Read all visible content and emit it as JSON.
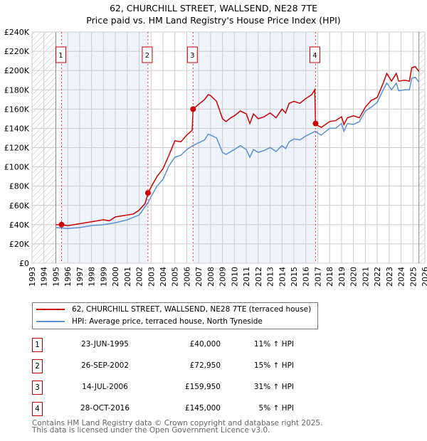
{
  "chart_data": {
    "type": "line",
    "title": "62, CHURCHILL STREET, WALLSEND, NE28 7TE",
    "subtitle": "Price paid vs. HM Land Registry's House Price Index (HPI)",
    "xlim": [
      1993,
      2026
    ],
    "ylim": [
      0,
      240000
    ],
    "x_ticks": [
      "1993",
      "1994",
      "1995",
      "1996",
      "1997",
      "1998",
      "1999",
      "2000",
      "2001",
      "2002",
      "2003",
      "2004",
      "2005",
      "2006",
      "2007",
      "2008",
      "2009",
      "2010",
      "2011",
      "2012",
      "2013",
      "2014",
      "2015",
      "2016",
      "2017",
      "2018",
      "2019",
      "2020",
      "2021",
      "2022",
      "2023",
      "2024",
      "2025",
      "2026"
    ],
    "y_ticks": [
      "£0",
      "£20K",
      "£40K",
      "£60K",
      "£80K",
      "£100K",
      "£120K",
      "£140K",
      "£160K",
      "£180K",
      "£200K",
      "£220K",
      "£240K"
    ],
    "grid": true,
    "data_range": [
      1995.0,
      2025.5
    ],
    "series": [
      {
        "name": "62, CHURCHILL STREET, WALLSEND, NE28 7TE (terraced house)",
        "color": "#cc0000",
        "x": [
          1995,
          1995.5,
          1996,
          1997,
          1998,
          1999,
          1999.5,
          2000,
          2001,
          2001.5,
          2002,
          2002.5,
          2002.75,
          2003,
          2003.5,
          2004,
          2004.5,
          2005,
          2005.5,
          2006,
          2006.45,
          2006.53,
          2007,
          2007.5,
          2007.8,
          2008,
          2008.5,
          2009,
          2009.3,
          2009.7,
          2010,
          2010.5,
          2011,
          2011.3,
          2011.6,
          2012,
          2012.5,
          2013,
          2013.5,
          2014,
          2014.3,
          2014.6,
          2015,
          2015.5,
          2016,
          2016.5,
          2016.75,
          2016.82,
          2017,
          2017.3,
          2018,
          2018.5,
          2019,
          2019.2,
          2019.5,
          2020,
          2020.5,
          2021,
          2021.5,
          2022,
          2022.5,
          2022.8,
          2023.2,
          2023.6,
          2023.8,
          2024.3,
          2024.7,
          2024.9,
          2025.2,
          2025.5
        ],
        "y": [
          40,
          40,
          39,
          41,
          43,
          45,
          44,
          48,
          50,
          51,
          55,
          62,
          73,
          79,
          90,
          98,
          112,
          127,
          126,
          133,
          138,
          160,
          165,
          170,
          175,
          174,
          168,
          150,
          147,
          151,
          153,
          158,
          155,
          145,
          155,
          150,
          152,
          156,
          151,
          160,
          156,
          166,
          168,
          166,
          171,
          175,
          180,
          145,
          143,
          141,
          147,
          148,
          152,
          144,
          151,
          153,
          151,
          162,
          169,
          172,
          187,
          197,
          189,
          197,
          189,
          190,
          189,
          203,
          204,
          199
        ]
      },
      {
        "name": "HPI: Average price, terraced house, North Tyneside",
        "color": "#5b8fd4",
        "x": [
          1995,
          1996,
          1997,
          1998,
          1999,
          2000,
          2001,
          2002,
          2002.75,
          2003,
          2003.5,
          2004,
          2004.5,
          2005,
          2005.5,
          2006,
          2006.5,
          2007,
          2007.5,
          2007.8,
          2008,
          2008.5,
          2009,
          2009.3,
          2010,
          2010.5,
          2011,
          2011.3,
          2011.6,
          2012,
          2012.5,
          2013,
          2013.5,
          2014,
          2014.3,
          2014.6,
          2015,
          2015.5,
          2016,
          2016.8,
          2017,
          2017.3,
          2018,
          2018.5,
          2019,
          2019.2,
          2019.5,
          2020,
          2020.5,
          2021,
          2021.5,
          2022,
          2022.5,
          2022.8,
          2023.2,
          2023.6,
          2023.8,
          2024.3,
          2024.7,
          2024.9,
          2025.2,
          2025.5
        ],
        "y": [
          37,
          36,
          37,
          39,
          40,
          42,
          45,
          50,
          63,
          69,
          80,
          87,
          101,
          110,
          112,
          118,
          122,
          125,
          128,
          134,
          133,
          130,
          115,
          113,
          118,
          122,
          118,
          110,
          118,
          115,
          117,
          120,
          116,
          122,
          119,
          126,
          129,
          128,
          132,
          137,
          135,
          133,
          140,
          140,
          145,
          137,
          145,
          144,
          147,
          158,
          162,
          167,
          180,
          187,
          180,
          187,
          179,
          180,
          180,
          192,
          193,
          188
        ]
      }
    ],
    "y_unit": "thousands GBP",
    "sales": [
      {
        "label": "1",
        "x": 1995.48,
        "date": "23-JUN-1995",
        "price": "£40,000",
        "value": 40,
        "hpi": "11% ↑ HPI"
      },
      {
        "label": "2",
        "x": 2002.74,
        "date": "26-SEP-2002",
        "price": "£72,950",
        "value": 72.95,
        "hpi": "15% ↑ HPI"
      },
      {
        "label": "3",
        "x": 2006.53,
        "date": "14-JUL-2006",
        "price": "£159,950",
        "value": 159.95,
        "hpi": "31% ↑ HPI"
      },
      {
        "label": "4",
        "x": 2016.82,
        "date": "28-OCT-2016",
        "price": "£145,000",
        "value": 145,
        "hpi": "5% ↑ HPI"
      }
    ],
    "legend": "bottom"
  },
  "footer": {
    "line1": "Contains HM Land Registry data © Crown copyright and database right 2025.",
    "line2": "This data is licensed under the Open Government Licence v3.0."
  }
}
